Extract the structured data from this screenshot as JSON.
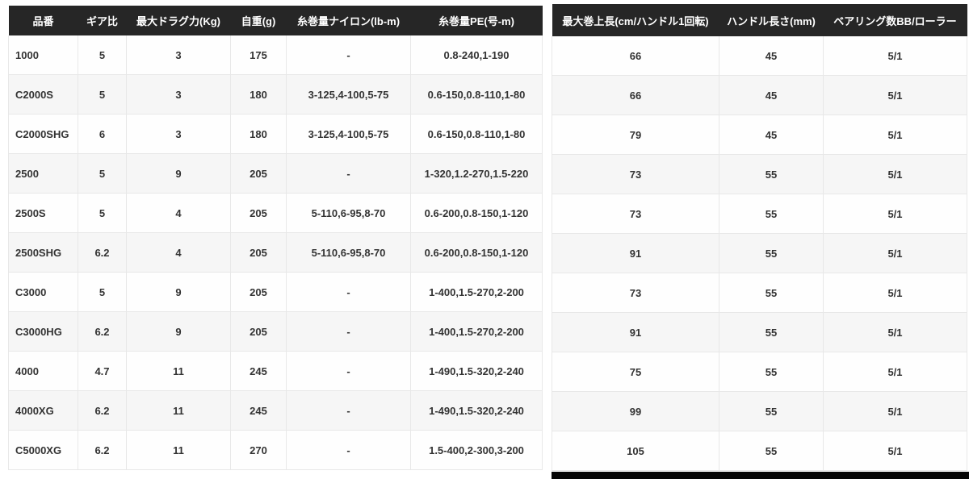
{
  "colors": {
    "header_bg": "#262626",
    "header_text": "#ffffff",
    "row_bg": "#fefefe",
    "row_alt_bg": "#f6f6f6",
    "body_text": "#333333",
    "border": "#e8e8e8",
    "scrollbar_thumb": "#050505"
  },
  "table": {
    "headers": [
      "品番",
      "ギア比",
      "最大ドラグ力(Kg)",
      "自重(g)",
      "糸巻量ナイロン(lb-m)",
      "糸巻量PE(号-m)",
      "最大巻上長(cm/ハンドル1回転)",
      "ハンドル長さ(mm)",
      "ベアリング数BB/ローラー"
    ],
    "rows": [
      [
        "1000",
        "5",
        "3",
        "175",
        "-",
        "0.8-240,1-190",
        "66",
        "45",
        "5/1"
      ],
      [
        "C2000S",
        "5",
        "3",
        "180",
        "3-125,4-100,5-75",
        "0.6-150,0.8-110,1-80",
        "66",
        "45",
        "5/1"
      ],
      [
        "C2000SHG",
        "6",
        "3",
        "180",
        "3-125,4-100,5-75",
        "0.6-150,0.8-110,1-80",
        "79",
        "45",
        "5/1"
      ],
      [
        "2500",
        "5",
        "9",
        "205",
        "-",
        "1-320,1.2-270,1.5-220",
        "73",
        "55",
        "5/1"
      ],
      [
        "2500S",
        "5",
        "4",
        "205",
        "5-110,6-95,8-70",
        "0.6-200,0.8-150,1-120",
        "73",
        "55",
        "5/1"
      ],
      [
        "2500SHG",
        "6.2",
        "4",
        "205",
        "5-110,6-95,8-70",
        "0.6-200,0.8-150,1-120",
        "91",
        "55",
        "5/1"
      ],
      [
        "C3000",
        "5",
        "9",
        "205",
        "-",
        "1-400,1.5-270,2-200",
        "73",
        "55",
        "5/1"
      ],
      [
        "C3000HG",
        "6.2",
        "9",
        "205",
        "-",
        "1-400,1.5-270,2-200",
        "91",
        "55",
        "5/1"
      ],
      [
        "4000",
        "4.7",
        "11",
        "245",
        "-",
        "1-490,1.5-320,2-240",
        "75",
        "55",
        "5/1"
      ],
      [
        "4000XG",
        "6.2",
        "11",
        "245",
        "-",
        "1-490,1.5-320,2-240",
        "99",
        "55",
        "5/1"
      ],
      [
        "C5000XG",
        "6.2",
        "11",
        "270",
        "-",
        "1.5-400,2-300,3-200",
        "105",
        "55",
        "5/1"
      ]
    ]
  }
}
